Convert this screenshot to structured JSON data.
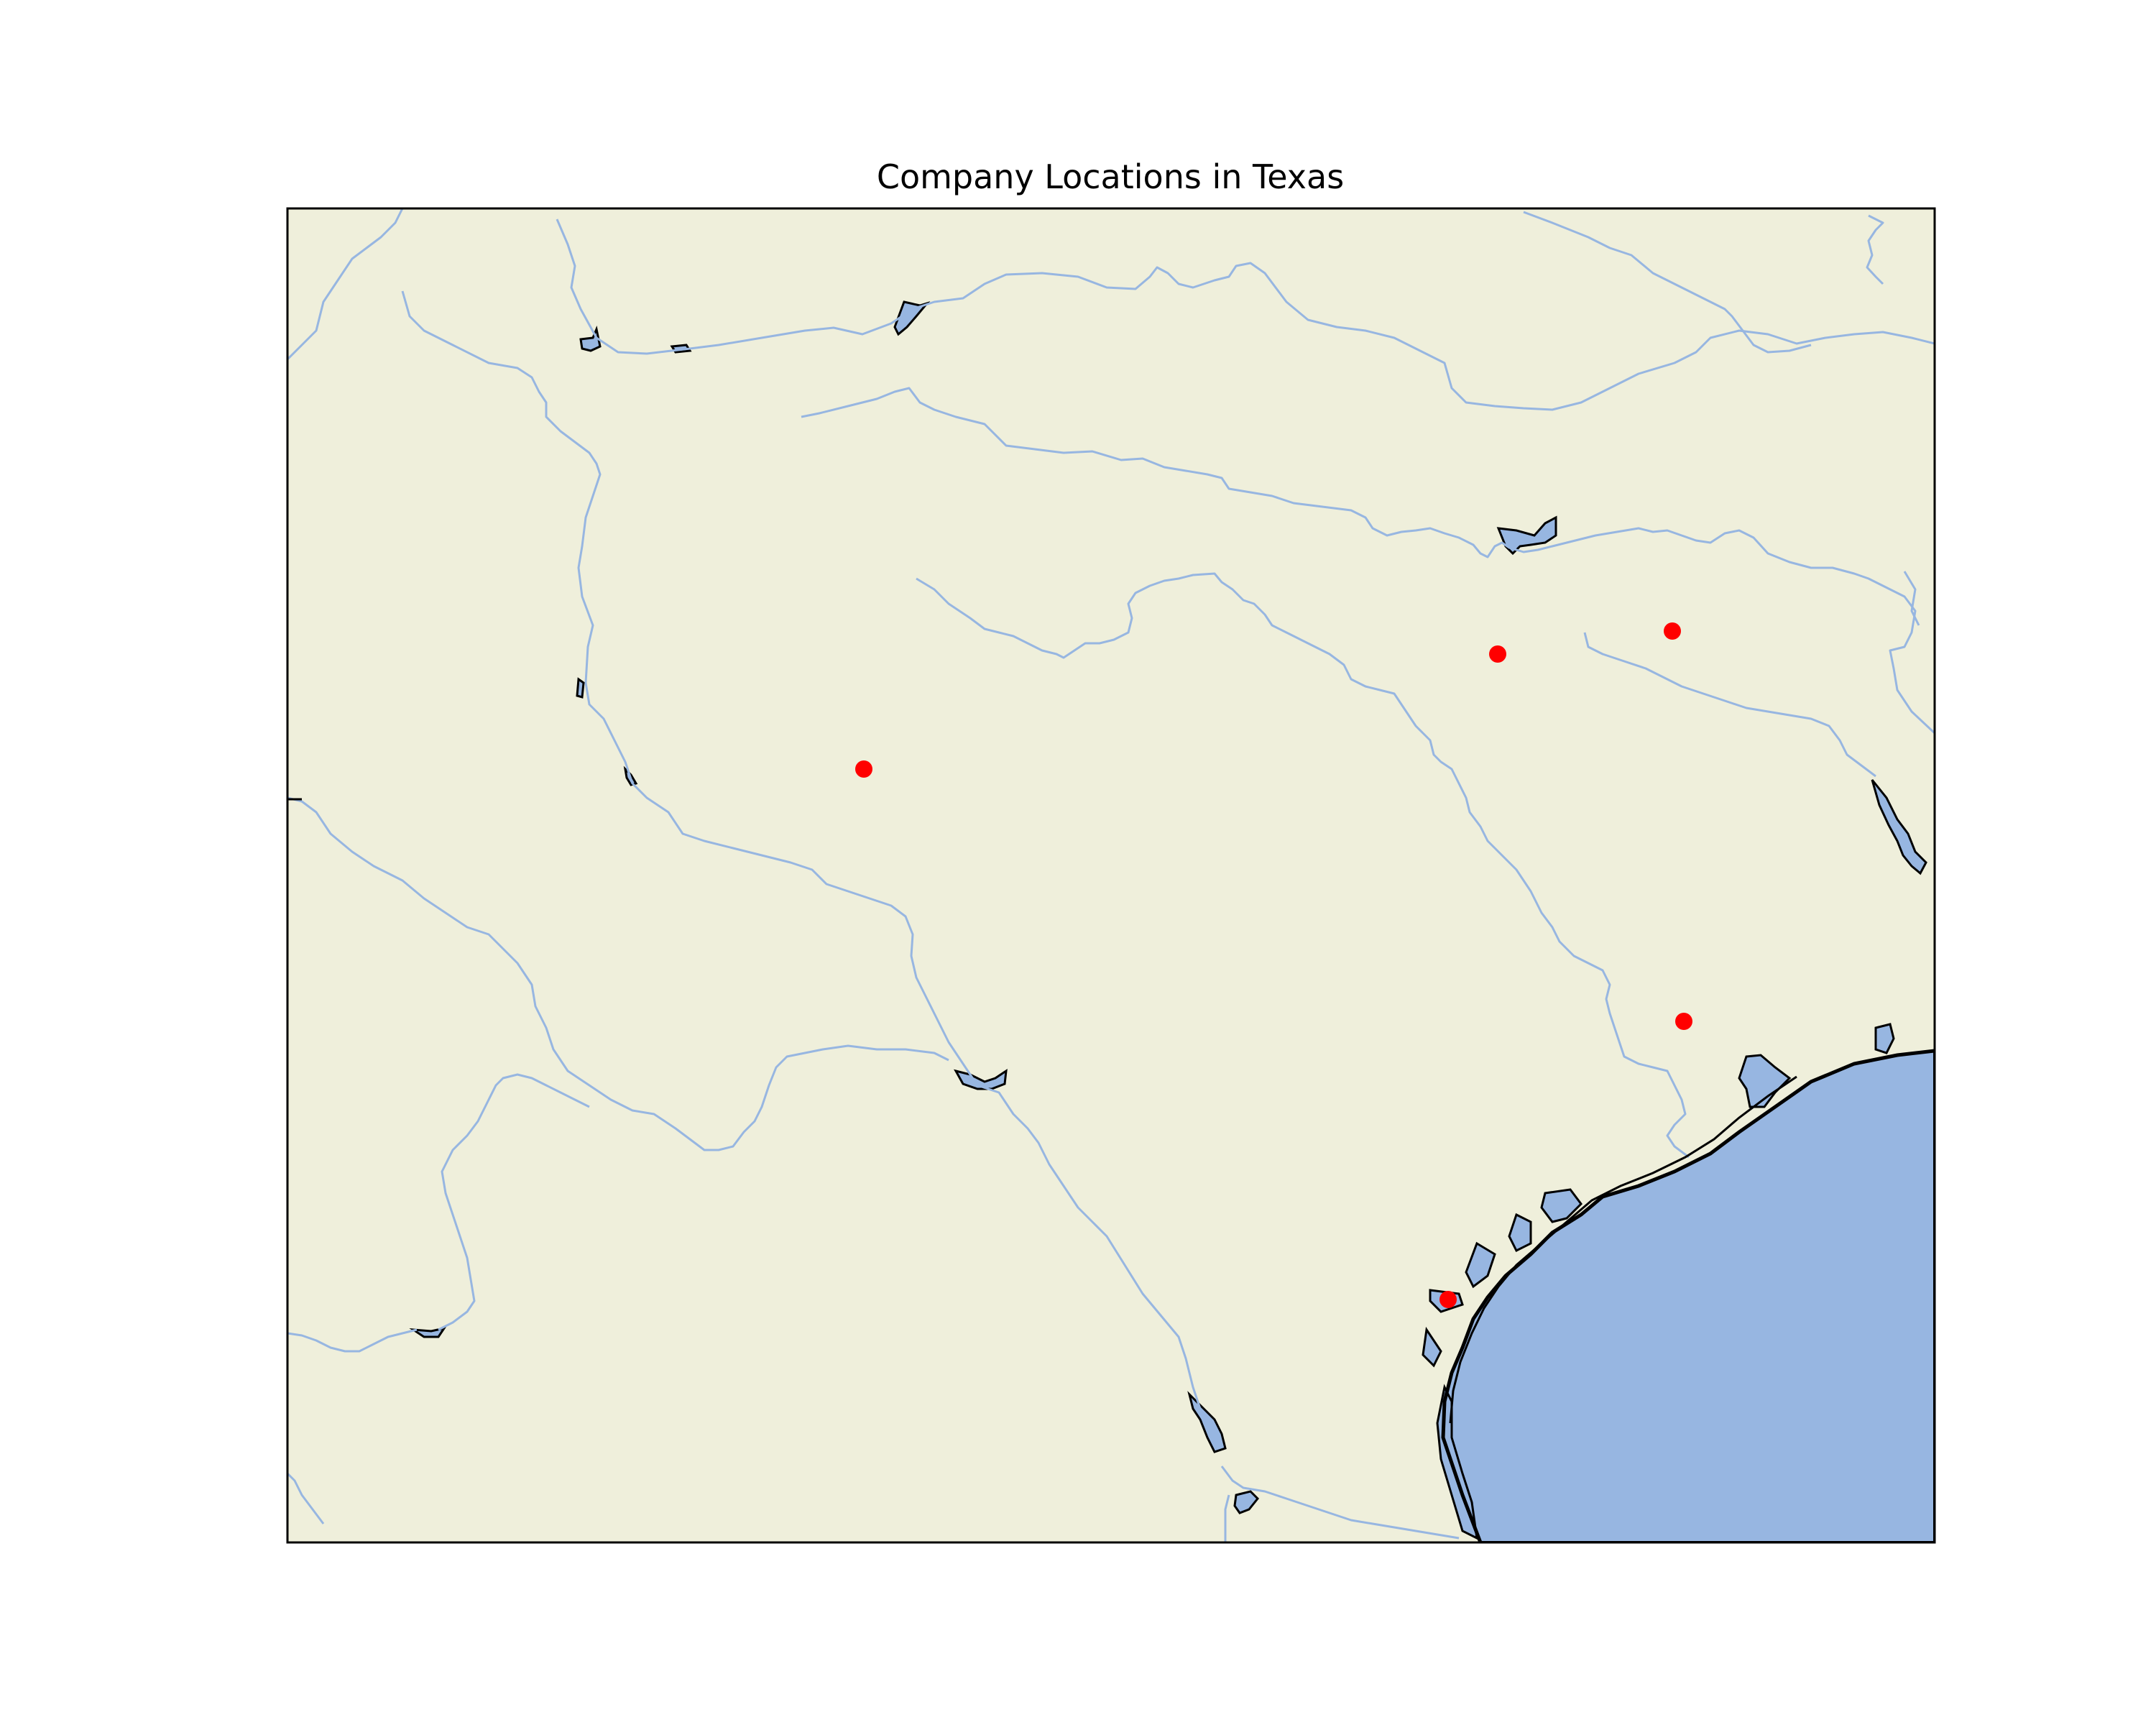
{
  "map": {
    "title": "Company Locations in Texas",
    "land_color": "#efefdb",
    "water_color": "#97b6e1",
    "river_color": "#97b6e1",
    "coastline_color": "#000000",
    "marker_color": "#ff0000",
    "marker_count": 5
  }
}
